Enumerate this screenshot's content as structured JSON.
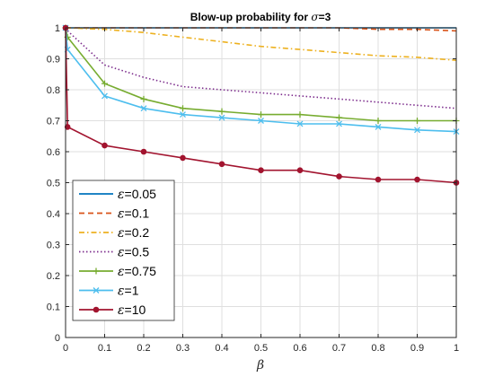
{
  "chart_data": {
    "type": "line",
    "title": "Blow-up probability for σ=3",
    "title_parts": {
      "prefix": "Blow-up probability for ",
      "symbol": "σ",
      "suffix": "=3"
    },
    "xlabel": "β",
    "ylabel": "",
    "xlim": [
      0,
      1
    ],
    "ylim": [
      0,
      1
    ],
    "xticks": [
      "0",
      "0.1",
      "0.2",
      "0.3",
      "0.4",
      "0.5",
      "0.6",
      "0.7",
      "0.8",
      "0.9",
      "1"
    ],
    "yticks": [
      "0",
      "0.1",
      "0.2",
      "0.3",
      "0.4",
      "0.5",
      "0.6",
      "0.7",
      "0.8",
      "0.9",
      "1"
    ],
    "grid": true,
    "legend_position": "bottom-left",
    "x": [
      0,
      0.005,
      0.1,
      0.2,
      0.3,
      0.4,
      0.5,
      0.6,
      0.7,
      0.8,
      0.9,
      1.0
    ],
    "series": [
      {
        "name": "ε=0.05",
        "symbol": "ε",
        "value": "=0.05",
        "color": "#0072BD",
        "style": "solid",
        "marker": "none",
        "values": [
          1,
          1,
          1,
          1,
          1,
          1,
          1,
          1,
          1,
          1,
          1,
          1
        ]
      },
      {
        "name": "ε=0.1",
        "symbol": "ε",
        "value": "=0.1",
        "color": "#D95319",
        "style": "dashed",
        "marker": "none",
        "values": [
          1,
          1,
          1,
          1,
          1,
          1,
          1,
          1,
          1,
          0.995,
          0.995,
          0.99
        ]
      },
      {
        "name": "ε=0.2",
        "symbol": "ε",
        "value": "=0.2",
        "color": "#EDB120",
        "style": "dashdot",
        "marker": "none",
        "values": [
          1,
          1,
          0.995,
          0.985,
          0.97,
          0.955,
          0.94,
          0.93,
          0.92,
          0.91,
          0.905,
          0.895
        ]
      },
      {
        "name": "ε=0.5",
        "symbol": "ε",
        "value": "=0.5",
        "color": "#7E2F8E",
        "style": "dotted",
        "marker": "none",
        "values": [
          1,
          0.99,
          0.88,
          0.84,
          0.81,
          0.8,
          0.79,
          0.78,
          0.77,
          0.76,
          0.75,
          0.74
        ]
      },
      {
        "name": "ε=0.75",
        "symbol": "ε",
        "value": "=0.75",
        "color": "#77AC30",
        "style": "solid",
        "marker": "plus",
        "values": [
          1,
          0.97,
          0.82,
          0.77,
          0.74,
          0.73,
          0.72,
          0.72,
          0.71,
          0.7,
          0.7,
          0.7
        ]
      },
      {
        "name": "ε=1",
        "symbol": "ε",
        "value": "=1",
        "color": "#4DBEEE",
        "style": "solid",
        "marker": "x",
        "values": [
          1,
          0.93,
          0.78,
          0.74,
          0.72,
          0.71,
          0.7,
          0.69,
          0.69,
          0.68,
          0.67,
          0.665
        ]
      },
      {
        "name": "ε=10",
        "symbol": "ε",
        "value": "=10",
        "color": "#A2142F",
        "style": "solid",
        "marker": "dot",
        "values": [
          1,
          0.68,
          0.62,
          0.6,
          0.58,
          0.56,
          0.54,
          0.54,
          0.52,
          0.51,
          0.51,
          0.5
        ]
      }
    ]
  }
}
